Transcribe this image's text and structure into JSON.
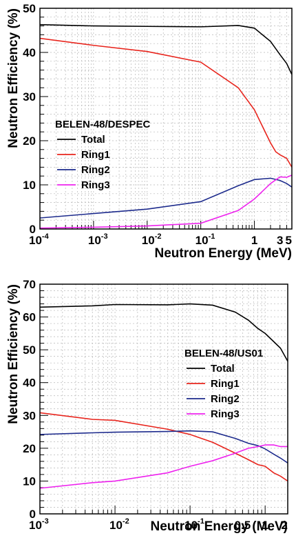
{
  "chart_data": [
    {
      "type": "line",
      "ylabel": "Neutron Efficiency (%)",
      "xlabel": "Neutron Energy (MeV)",
      "xscale": "log",
      "xlim": [
        0.0001,
        5
      ],
      "ylim": [
        0,
        50
      ],
      "yticks": [
        0,
        10,
        20,
        30,
        40,
        50
      ],
      "xticks": [
        {
          "value": 0.0001,
          "base": "10",
          "exp": "-4",
          "label": ""
        },
        {
          "value": 0.001,
          "base": "10",
          "exp": "-3",
          "label": ""
        },
        {
          "value": 0.01,
          "base": "10",
          "exp": "-2",
          "label": ""
        },
        {
          "value": 0.1,
          "base": "10",
          "exp": "-1",
          "label": ""
        },
        {
          "value": 1,
          "base": "",
          "exp": "",
          "label": "1"
        },
        {
          "value": 3,
          "base": "",
          "exp": "",
          "label": "3"
        },
        {
          "value": 5,
          "base": "",
          "exp": "",
          "label": "5"
        }
      ],
      "grid": true,
      "legend_title": "BELEN-48/DESPEC",
      "legend_placement": "center-left",
      "series": [
        {
          "name": "Total",
          "color": "#000000",
          "x": [
            0.0001,
            0.001,
            0.01,
            0.1,
            0.5,
            1,
            2,
            3,
            4,
            5
          ],
          "y": [
            46.3,
            46.0,
            45.9,
            45.8,
            46.1,
            45.5,
            42.5,
            39.5,
            37.5,
            35.0
          ]
        },
        {
          "name": "Ring1",
          "color": "#e8241c",
          "x": [
            0.0001,
            0.001,
            0.01,
            0.1,
            0.5,
            1,
            2,
            2.5,
            3,
            4,
            5
          ],
          "y": [
            43.2,
            41.6,
            40.2,
            37.8,
            32.0,
            27.0,
            19.5,
            17.5,
            16.8,
            16.0,
            14.0
          ]
        },
        {
          "name": "Ring2",
          "color": "#1c2a8c",
          "x": [
            0.0001,
            0.001,
            0.01,
            0.1,
            0.5,
            1,
            2,
            3,
            4,
            5
          ],
          "y": [
            2.5,
            3.5,
            4.5,
            6.2,
            9.8,
            11.2,
            11.5,
            11.0,
            10.3,
            9.5
          ]
        },
        {
          "name": "Ring3",
          "color": "#ee22ee",
          "x": [
            0.0001,
            0.001,
            0.01,
            0.1,
            0.5,
            1,
            2,
            3,
            4,
            5
          ],
          "y": [
            0.2,
            0.4,
            0.7,
            1.3,
            4.2,
            6.8,
            10.3,
            11.8,
            11.7,
            12.2
          ]
        }
      ]
    },
    {
      "type": "line",
      "ylabel": "Neutron Efficiency (%)",
      "xlabel": "Neutron Energy (MeV)",
      "xscale": "log",
      "xlim": [
        0.001,
        2
      ],
      "ylim": [
        0,
        70
      ],
      "yticks": [
        0,
        10,
        20,
        30,
        40,
        50,
        60,
        70
      ],
      "xticks": [
        {
          "value": 0.001,
          "base": "10",
          "exp": "-3",
          "label": ""
        },
        {
          "value": 0.01,
          "base": "10",
          "exp": "-2",
          "label": ""
        },
        {
          "value": 0.1,
          "base": "10",
          "exp": "-1",
          "label": ""
        },
        {
          "value": 0.5,
          "base": "",
          "exp": "",
          "label": "0.5"
        },
        {
          "value": 1,
          "base": "",
          "exp": "",
          "label": "1"
        },
        {
          "value": 2,
          "base": "",
          "exp": "",
          "label": "2"
        }
      ],
      "grid": true,
      "legend_title": "BELEN-48/US01",
      "legend_placement": "center-right",
      "series": [
        {
          "name": "Total",
          "color": "#000000",
          "x": [
            0.001,
            0.005,
            0.01,
            0.05,
            0.1,
            0.2,
            0.4,
            0.6,
            0.8,
            1.0,
            1.3,
            1.6,
            2.0
          ],
          "y": [
            63.0,
            63.4,
            63.8,
            63.7,
            64.0,
            63.6,
            61.5,
            59.0,
            56.5,
            55.0,
            52.5,
            50.5,
            46.5
          ]
        },
        {
          "name": "Ring1",
          "color": "#e8241c",
          "x": [
            0.001,
            0.005,
            0.01,
            0.05,
            0.1,
            0.2,
            0.4,
            0.6,
            0.8,
            1.0,
            1.3,
            1.6,
            2.0
          ],
          "y": [
            30.8,
            28.8,
            28.5,
            25.8,
            24.2,
            21.8,
            18.5,
            16.5,
            15.0,
            14.5,
            12.5,
            11.5,
            10.0
          ]
        },
        {
          "name": "Ring2",
          "color": "#1c2a8c",
          "x": [
            0.001,
            0.005,
            0.01,
            0.05,
            0.1,
            0.2,
            0.4,
            0.6,
            0.8,
            1.0,
            1.3,
            1.6,
            2.0
          ],
          "y": [
            24.2,
            24.7,
            24.9,
            25.1,
            25.3,
            25.0,
            23.0,
            21.5,
            20.8,
            19.8,
            18.2,
            17.0,
            15.5
          ]
        },
        {
          "name": "Ring3",
          "color": "#ee22ee",
          "x": [
            0.001,
            0.005,
            0.01,
            0.05,
            0.1,
            0.2,
            0.4,
            0.6,
            0.8,
            1.0,
            1.3,
            1.6,
            2.0
          ],
          "y": [
            7.8,
            9.5,
            10.0,
            12.5,
            14.5,
            16.2,
            18.5,
            20.0,
            20.5,
            21.0,
            21.0,
            20.5,
            20.5
          ]
        }
      ]
    }
  ]
}
